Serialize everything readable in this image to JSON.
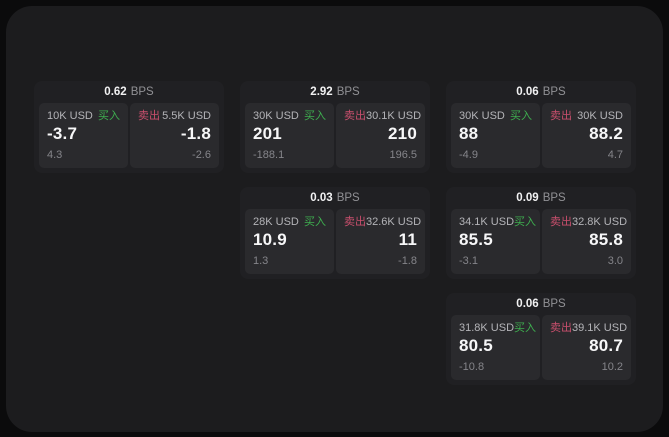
{
  "labels": {
    "buy": "买入",
    "sell": "卖出",
    "bps_suffix": "BPS"
  },
  "colors": {
    "page_background": "#0b0b0c",
    "panel_background": "#1c1c1e",
    "card_background": "#202023",
    "cell_background": "#2a2a2d",
    "buy_green": "#3eae4f",
    "sell_red": "#c94f6d"
  },
  "columns": [
    {
      "cards": [
        {
          "bps": "0.62",
          "buy": {
            "notional": "10K USD",
            "price": "-3.7",
            "change": "4.3"
          },
          "sell": {
            "notional": "5.5K USD",
            "price": "-1.8",
            "change": "-2.6"
          }
        }
      ]
    },
    {
      "cards": [
        {
          "bps": "2.92",
          "buy": {
            "notional": "30K USD",
            "price": "201",
            "change": "-188.1"
          },
          "sell": {
            "notional": "30.1K USD",
            "price": "210",
            "change": "196.5"
          }
        },
        {
          "bps": "0.03",
          "buy": {
            "notional": "28K USD",
            "price": "10.9",
            "change": "1.3"
          },
          "sell": {
            "notional": "32.6K USD",
            "price": "11",
            "change": "-1.8"
          }
        }
      ]
    },
    {
      "cards": [
        {
          "bps": "0.06",
          "buy": {
            "notional": "30K USD",
            "price": "88",
            "change": "-4.9"
          },
          "sell": {
            "notional": "30K USD",
            "price": "88.2",
            "change": "4.7"
          }
        },
        {
          "bps": "0.09",
          "buy": {
            "notional": "34.1K USD",
            "price": "85.5",
            "change": "-3.1"
          },
          "sell": {
            "notional": "32.8K USD",
            "price": "85.8",
            "change": "3.0"
          }
        },
        {
          "bps": "0.06",
          "buy": {
            "notional": "31.8K USD",
            "price": "80.5",
            "change": "-10.8"
          },
          "sell": {
            "notional": "39.1K USD",
            "price": "80.7",
            "change": "10.2"
          }
        }
      ]
    }
  ]
}
